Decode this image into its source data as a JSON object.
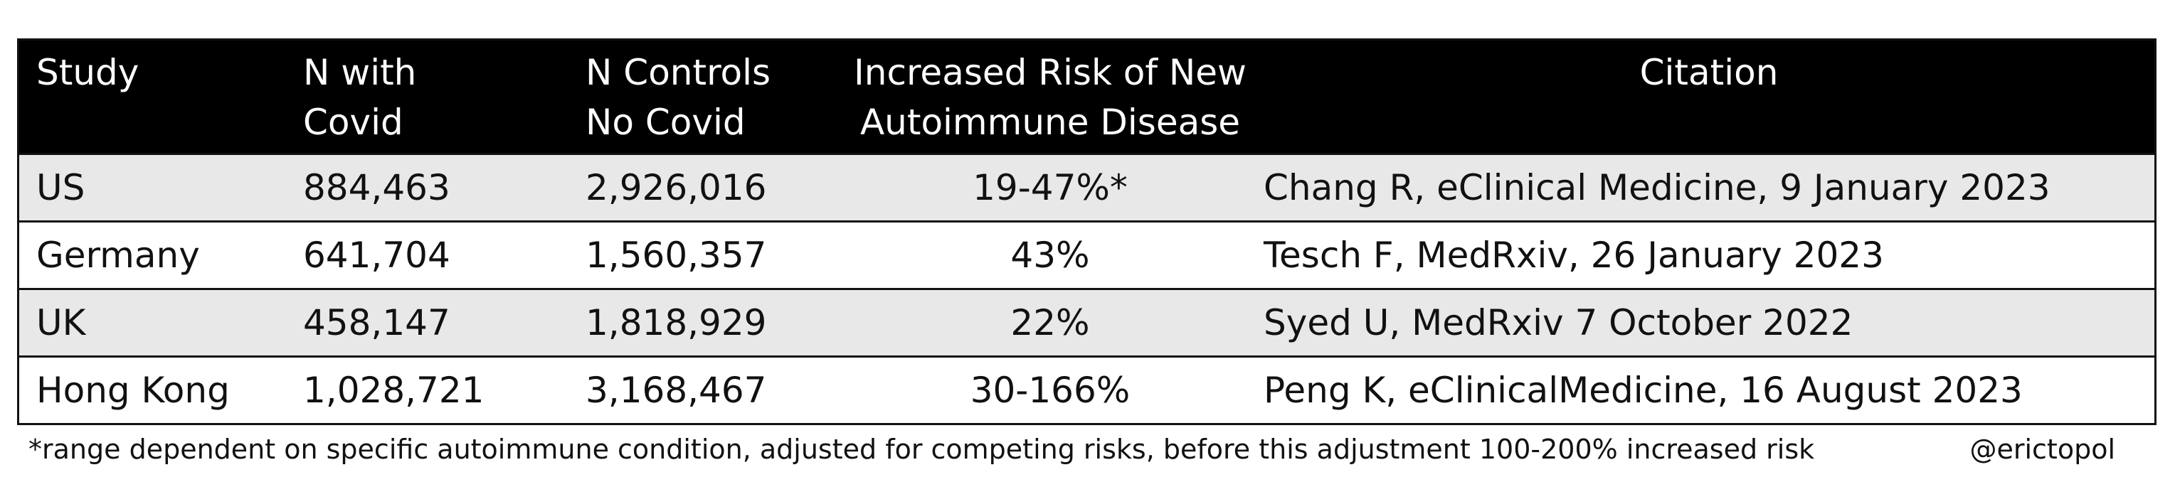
{
  "chart_data": {
    "type": "table",
    "columns": [
      "Study",
      "N with\nCovid",
      "N Controls\nNo Covid",
      "Increased Risk of New\nAutoimmune  Disease",
      "Citation"
    ],
    "rows": [
      [
        "US",
        "884,463",
        "2,926,016",
        "19-47%*",
        "Chang R, eClinical Medicine, 9 January 2023"
      ],
      [
        "Germany",
        "641,704",
        "1,560,357",
        "43%",
        "Tesch F, MedRxiv, 26 January 2023"
      ],
      [
        "UK",
        "458,147",
        "1,818,929",
        "22%",
        "Syed U, MedRxiv 7 October 2022"
      ],
      [
        "Hong Kong",
        "1,028,721",
        "3,168,467",
        "30-166%",
        "Peng K, eClinicalMedicine, 16 August 2023"
      ]
    ],
    "footnote": "*range dependent on specific autoimmune condition, adjusted for competing risks, before this adjustment 100-200% increased risk",
    "credit": "@erictopol"
  },
  "colors": {
    "header_bg": "#000000",
    "header_text": "#ffffff",
    "shaded_row": "#e8e8e8",
    "plain_row": "#ffffff"
  }
}
